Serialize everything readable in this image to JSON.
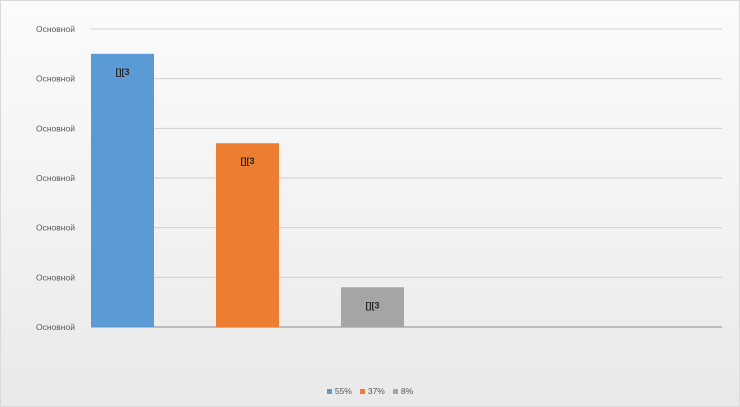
{
  "chart_data": {
    "type": "bar",
    "categories": [
      "55%",
      "37%",
      "8%"
    ],
    "values": [
      55,
      37,
      8
    ],
    "data_labels": [
      "[][3",
      "[][3",
      "[][3"
    ],
    "colors": [
      "#5b9bd5",
      "#ed7d31",
      "#a5a5a5"
    ],
    "y_tick_labels": [
      "Основной",
      "Основной",
      "Основной",
      "Основной",
      "Основной",
      "Основной",
      "Основной"
    ],
    "ylim": [
      0,
      60
    ],
    "grid": true,
    "legend_position": "bottom",
    "legend": [
      {
        "label": "55%",
        "color": "#5b9bd5"
      },
      {
        "label": "37%",
        "color": "#ed7d31"
      },
      {
        "label": "8%",
        "color": "#a5a5a5"
      }
    ]
  }
}
